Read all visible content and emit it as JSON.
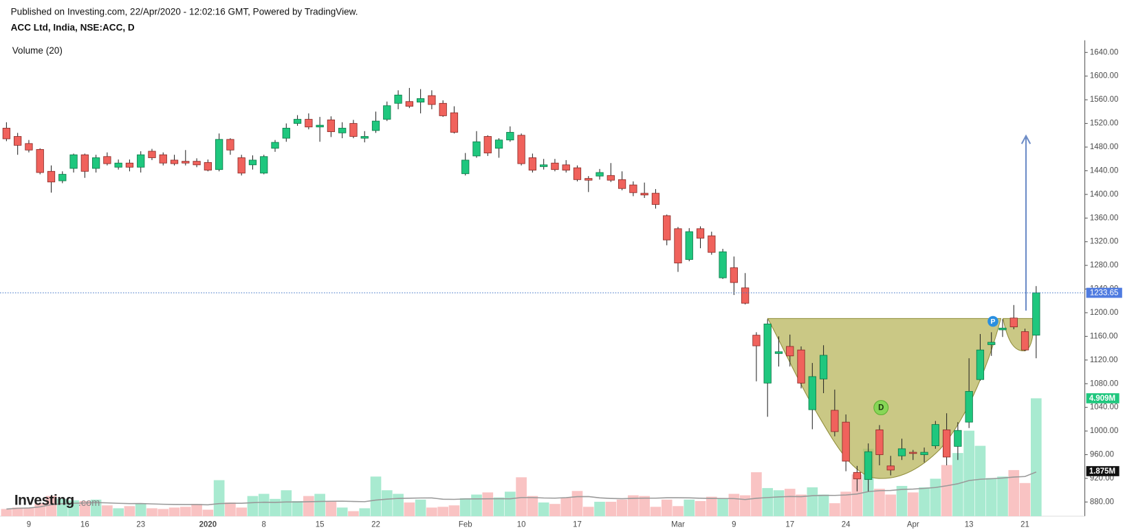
{
  "chart_data": {
    "type": "candlestick",
    "title": "ACC Ltd, India, NSE:ACC, D",
    "subtitle": "Published on Investing.com, 22/Apr/2020 - 12:02:16 GMT, Powered by TradingView.",
    "volume_label": "Volume (20)",
    "logo": {
      "main": "Investing",
      "suffix": ".com"
    },
    "categories": [
      null,
      null,
      "9",
      null,
      null,
      null,
      null,
      "16",
      null,
      null,
      null,
      null,
      "23",
      null,
      null,
      null,
      null,
      null,
      "2020",
      null,
      null,
      null,
      null,
      "8",
      null,
      null,
      null,
      null,
      "15",
      null,
      null,
      null,
      null,
      "22",
      null,
      null,
      null,
      null,
      null,
      null,
      null,
      "Feb",
      null,
      null,
      null,
      null,
      "10",
      null,
      null,
      null,
      null,
      "17",
      null,
      null,
      null,
      null,
      null,
      null,
      null,
      null,
      "Mar",
      null,
      null,
      null,
      null,
      "9",
      null,
      null,
      null,
      null,
      "17",
      null,
      null,
      null,
      null,
      "24",
      null,
      null,
      null,
      null,
      null,
      "Apr",
      null,
      null,
      null,
      null,
      "13",
      null,
      null,
      null,
      null,
      "21",
      null
    ],
    "open": [
      1512,
      1498,
      1486,
      1476,
      1439,
      1423,
      1444,
      1467,
      1444,
      1464,
      1446,
      1453,
      1446,
      1473,
      1467,
      1458,
      1456,
      1456,
      1454,
      1442,
      1493,
      1462,
      1450,
      1436,
      1478,
      1495,
      1520,
      1527,
      1514,
      1526,
      1504,
      1520,
      1495,
      1508,
      1527,
      1554,
      1557,
      1556,
      1567,
      1554,
      1538,
      1435,
      1465,
      1498,
      1478,
      1492,
      1500,
      1462,
      1447,
      1453,
      1450,
      1445,
      1427,
      1431,
      1432,
      1425,
      1416,
      1402,
      1402,
      1364,
      1342,
      1290,
      1342,
      1330,
      1259,
      1276,
      1242,
      1162,
      1081,
      1131,
      1143,
      1137,
      1036,
      1088,
      1035,
      1015,
      930,
      918,
      1002,
      941,
      958,
      964,
      960,
      975,
      1002,
      974,
      1015,
      1087,
      1146,
      1171,
      1191,
      1168,
      1162
    ],
    "high": [
      1522,
      1504,
      1492,
      1478,
      1449,
      1439,
      1469,
      1469,
      1467,
      1471,
      1459,
      1459,
      1473,
      1477,
      1471,
      1467,
      1475,
      1461,
      1459,
      1503,
      1495,
      1467,
      1466,
      1467,
      1492,
      1520,
      1534,
      1537,
      1531,
      1532,
      1522,
      1526,
      1507,
      1540,
      1557,
      1576,
      1580,
      1578,
      1576,
      1559,
      1549,
      1470,
      1507,
      1500,
      1495,
      1515,
      1503,
      1469,
      1460,
      1460,
      1458,
      1449,
      1431,
      1443,
      1453,
      1439,
      1422,
      1420,
      1409,
      1366,
      1345,
      1343,
      1346,
      1337,
      1308,
      1295,
      1267,
      1167,
      1189,
      1160,
      1163,
      1143,
      1115,
      1145,
      1070,
      1028,
      941,
      979,
      1010,
      958,
      987,
      968,
      972,
      1017,
      1030,
      1015,
      1123,
      1164,
      1167,
      1189,
      1213,
      1173,
      1245
    ],
    "low": [
      1490,
      1467,
      1471,
      1434,
      1403,
      1419,
      1437,
      1428,
      1437,
      1449,
      1442,
      1439,
      1437,
      1458,
      1449,
      1449,
      1449,
      1446,
      1439,
      1439,
      1467,
      1432,
      1442,
      1434,
      1472,
      1489,
      1516,
      1510,
      1489,
      1497,
      1495,
      1495,
      1488,
      1504,
      1524,
      1544,
      1546,
      1537,
      1544,
      1531,
      1503,
      1432,
      1462,
      1465,
      1462,
      1489,
      1449,
      1437,
      1442,
      1439,
      1437,
      1422,
      1404,
      1425,
      1421,
      1407,
      1397,
      1394,
      1376,
      1314,
      1269,
      1287,
      1309,
      1298,
      1257,
      1230,
      1214,
      1084,
      1024,
      1109,
      1109,
      1072,
      1003,
      1064,
      991,
      932,
      898,
      898,
      942,
      925,
      951,
      951,
      947,
      970,
      942,
      951,
      1005,
      1085,
      1127,
      1159,
      1172,
      1135,
      1123
    ],
    "close": [
      1494,
      1483,
      1475,
      1437,
      1421,
      1434,
      1467,
      1439,
      1462,
      1452,
      1453,
      1446,
      1467,
      1462,
      1453,
      1452,
      1453,
      1450,
      1441,
      1493,
      1475,
      1436,
      1458,
      1464,
      1488,
      1512,
      1527,
      1514,
      1517,
      1506,
      1512,
      1498,
      1498,
      1524,
      1550,
      1568,
      1549,
      1562,
      1552,
      1533,
      1505,
      1458,
      1489,
      1470,
      1492,
      1505,
      1452,
      1441,
      1450,
      1442,
      1441,
      1425,
      1424,
      1437,
      1424,
      1410,
      1403,
      1399,
      1383,
      1323,
      1284,
      1337,
      1326,
      1302,
      1303,
      1251,
      1216,
      1144,
      1181,
      1134,
      1127,
      1081,
      1092,
      1128,
      999,
      949,
      919,
      965,
      960,
      934,
      970,
      962,
      964,
      1011,
      956,
      1001,
      1067,
      1137,
      1150,
      1174,
      1176,
      1137,
      1233.65
    ],
    "volume": [
      0.3,
      0.36,
      0.36,
      0.54,
      0.84,
      0.72,
      0.66,
      0.63,
      0.69,
      0.45,
      0.33,
      0.42,
      0.54,
      0.33,
      0.3,
      0.36,
      0.39,
      0.51,
      0.27,
      1.5,
      0.57,
      0.36,
      0.84,
      0.93,
      0.72,
      1.08,
      0.63,
      0.84,
      0.93,
      0.63,
      0.36,
      0.21,
      0.33,
      1.65,
      1.08,
      0.93,
      0.57,
      0.69,
      0.36,
      0.39,
      0.45,
      0.75,
      0.9,
      0.99,
      0.78,
      1.02,
      1.62,
      0.84,
      0.57,
      0.51,
      0.78,
      1.05,
      0.39,
      0.6,
      0.6,
      0.69,
      0.87,
      0.84,
      0.39,
      0.69,
      0.42,
      0.69,
      0.63,
      0.81,
      0.72,
      0.93,
      0.87,
      1.83,
      1.17,
      1.08,
      1.14,
      0.9,
      1.2,
      0.9,
      0.54,
      1.02,
      1.74,
      2.81,
      1.14,
      0.9,
      1.26,
      0.99,
      1.2,
      1.56,
      2.13,
      2.63,
      3.56,
      2.93,
      1.59,
      1.65,
      1.92,
      1.38,
      4.909
    ],
    "volume_last_label": "4.909M",
    "volume_ma": {
      "period": 20,
      "last": {
        "value": 1.875,
        "label": "1.875M"
      }
    },
    "ylim": [
      856,
      1660
    ],
    "yticks": [
      {
        "value": 880,
        "label": "880.00"
      },
      {
        "value": 920,
        "label": "920.00"
      },
      {
        "value": 960,
        "label": "960.00"
      },
      {
        "value": 1000,
        "label": "1000.00"
      },
      {
        "value": 1040,
        "label": "1040.00"
      },
      {
        "value": 1080,
        "label": "1080.00"
      },
      {
        "value": 1120,
        "label": "1120.00"
      },
      {
        "value": 1160,
        "label": "1160.00"
      },
      {
        "value": 1200,
        "label": "1200.00"
      },
      {
        "value": 1240,
        "label": "1240.00"
      },
      {
        "value": 1280,
        "label": "1280.00"
      },
      {
        "value": 1320,
        "label": "1320.00"
      },
      {
        "value": 1360,
        "label": "1360.00"
      },
      {
        "value": 1400,
        "label": "1400.00"
      },
      {
        "value": 1440,
        "label": "1440.00"
      },
      {
        "value": 1480,
        "label": "1480.00"
      },
      {
        "value": 1520,
        "label": "1520.00"
      },
      {
        "value": 1560,
        "label": "1560.00"
      },
      {
        "value": 1600,
        "label": "1600.00"
      },
      {
        "value": 1640,
        "label": "1640.00"
      }
    ],
    "up_color": "#1fc77e",
    "down_color": "#f0625c",
    "up_volume_color": "#a8ead0",
    "down_volume_color": "#f9c3c3",
    "markers": [
      {
        "label": "P"
      },
      {
        "label": "D"
      }
    ]
  }
}
